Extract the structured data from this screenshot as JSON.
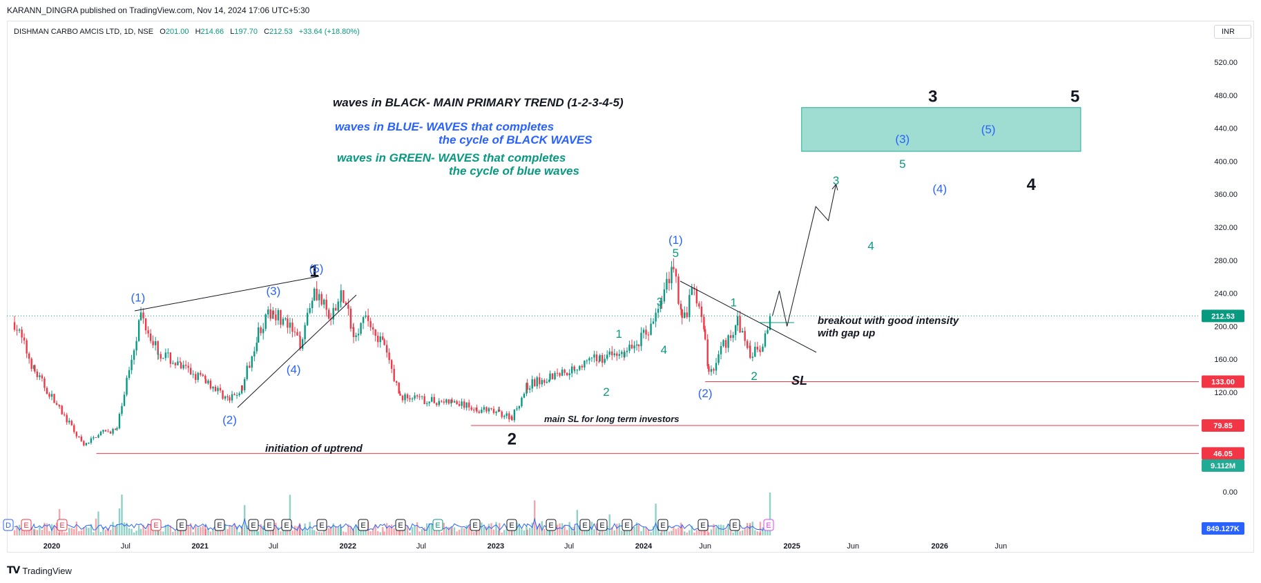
{
  "header": {
    "published": "KARANN_DINGRA published on TradingView.com, Nov 14, 2024 17:06 UTC+5:30",
    "symbol": "DISHMAN CARBO AMCIS LTD, 1D, NSE",
    "o_label": "O",
    "o_value": "201.00",
    "h_label": "H",
    "h_value": "214.66",
    "l_label": "L",
    "l_value": "197.70",
    "c_label": "C",
    "c_value": "212.53",
    "change": "+33.64 (+18.80%)",
    "currency": "INR"
  },
  "brand": {
    "logo": "TV",
    "name": "TradingView"
  },
  "colors": {
    "up": "#089981",
    "down": "#f23645",
    "blue_wave": "#2962ff",
    "green_wave": "#089981",
    "zone": "#7fd1c4",
    "sl_line": "#f23645"
  },
  "notes": {
    "black": "waves in BLACK- MAIN PRIMARY TREND (1-2-3-4-5)",
    "blue_1": "waves in BLUE- WAVES that completes",
    "blue_2": "the cycle of BLACK WAVES",
    "green_1": "waves in GREEN- WAVES that completes",
    "green_2": "the cycle of blue waves",
    "breakout_1": "breakout with good intensity",
    "breakout_2": "with gap up",
    "sl": "SL",
    "main_sl": "main SL for long term investors",
    "uptrend": "initiation of uptrend"
  },
  "chart_data": {
    "type": "candlestick",
    "title": "DISHMAN CARBO AMCIS LTD, 1D, NSE",
    "ylim": [
      0,
      540
    ],
    "y_ticks": [
      "520.00",
      "480.00",
      "440.00",
      "400.00",
      "360.00",
      "320.00",
      "280.00",
      "240.00",
      "200.00",
      "160.00",
      "120.00",
      "0.00"
    ],
    "x_ticks": [
      "2020",
      "Jul",
      "2021",
      "Jul",
      "2022",
      "Jul",
      "2023",
      "Jul",
      "2024",
      "Jun",
      "2025",
      "Jun",
      "2026",
      "Jun"
    ],
    "price_path": [
      [
        "2019-10-01",
        205
      ],
      [
        "2019-11-20",
        145
      ],
      [
        "2020-01-20",
        100
      ],
      [
        "2020-03-20",
        55
      ],
      [
        "2020-04-25",
        70
      ],
      [
        "2020-06-10",
        75
      ],
      [
        "2020-07-10",
        150
      ],
      [
        "2020-08-08",
        215
      ],
      [
        "2020-09-20",
        170
      ],
      [
        "2020-11-15",
        150
      ],
      [
        "2021-01-15",
        135
      ],
      [
        "2021-03-15",
        110
      ],
      [
        "2021-04-15",
        125
      ],
      [
        "2021-05-25",
        195
      ],
      [
        "2021-07-01",
        220
      ],
      [
        "2021-08-05",
        200
      ],
      [
        "2021-09-05",
        180
      ],
      [
        "2021-10-10",
        248
      ],
      [
        "2021-11-20",
        205
      ],
      [
        "2021-12-15",
        240
      ],
      [
        "2022-01-15",
        195
      ],
      [
        "2022-02-20",
        208
      ],
      [
        "2022-04-01",
        175
      ],
      [
        "2022-05-10",
        115
      ],
      [
        "2022-07-15",
        110
      ],
      [
        "2022-09-15",
        108
      ],
      [
        "2022-11-15",
        100
      ],
      [
        "2023-01-10",
        95
      ],
      [
        "2023-02-10",
        90
      ],
      [
        "2023-03-20",
        128
      ],
      [
        "2023-05-15",
        140
      ],
      [
        "2023-07-15",
        150
      ],
      [
        "2023-09-15",
        162
      ],
      [
        "2023-11-15",
        168
      ],
      [
        "2023-12-20",
        182
      ],
      [
        "2024-01-25",
        205
      ],
      [
        "2024-02-15",
        232
      ],
      [
        "2024-03-15",
        278
      ],
      [
        "2024-04-05",
        205
      ],
      [
        "2024-05-05",
        245
      ],
      [
        "2024-06-01",
        185
      ],
      [
        "2024-06-10",
        140
      ],
      [
        "2024-07-10",
        172
      ],
      [
        "2024-08-20",
        205
      ],
      [
        "2024-09-20",
        168
      ],
      [
        "2024-10-15",
        175
      ],
      [
        "2024-11-14",
        212.53
      ]
    ],
    "projection": [
      [
        "2024-11-14",
        212.53
      ],
      [
        "2024-12-01",
        243
      ],
      [
        "2024-12-20",
        200
      ],
      [
        "2025-03-01",
        345
      ],
      [
        "2025-04-01",
        328
      ],
      [
        "2025-04-20",
        372
      ]
    ],
    "wave_labels": [
      {
        "text": "1",
        "color": "black",
        "date": "2021-10-10",
        "price": 260
      },
      {
        "text": "2",
        "color": "black",
        "date": "2023-02-10",
        "price": 57
      },
      {
        "text": "3",
        "color": "black",
        "date": "2025-12-15",
        "price": 472
      },
      {
        "text": "4",
        "color": "black",
        "date": "2026-08-15",
        "price": 365
      },
      {
        "text": "5",
        "color": "black",
        "date": "2026-12-01",
        "price": 472
      },
      {
        "text": "(1)",
        "color": "blue",
        "date": "2020-08-01",
        "price": 230
      },
      {
        "text": "(2)",
        "color": "blue",
        "date": "2021-03-15",
        "price": 82
      },
      {
        "text": "(3)",
        "color": "blue",
        "date": "2021-07-01",
        "price": 238
      },
      {
        "text": "(4)",
        "color": "blue",
        "date": "2021-08-20",
        "price": 143
      },
      {
        "text": "(5)",
        "color": "blue",
        "date": "2021-10-15",
        "price": 265
      },
      {
        "text": "(1)",
        "color": "blue",
        "date": "2024-03-20",
        "price": 300
      },
      {
        "text": "(2)",
        "color": "blue",
        "date": "2024-06-01",
        "price": 114
      },
      {
        "text": "(3)",
        "color": "blue",
        "date": "2025-10-01",
        "price": 422
      },
      {
        "text": "(4)",
        "color": "blue",
        "date": "2026-01-01",
        "price": 362
      },
      {
        "text": "(5)",
        "color": "blue",
        "date": "2026-05-01",
        "price": 434
      },
      {
        "text": "1",
        "color": "green",
        "date": "2023-11-01",
        "price": 186
      },
      {
        "text": "2",
        "color": "green",
        "date": "2023-10-01",
        "price": 116
      },
      {
        "text": "3",
        "color": "green",
        "date": "2024-02-10",
        "price": 225
      },
      {
        "text": "4",
        "color": "green",
        "date": "2024-02-20",
        "price": 167
      },
      {
        "text": "5",
        "color": "green",
        "date": "2024-03-20",
        "price": 284
      },
      {
        "text": "1",
        "color": "green",
        "date": "2024-08-10",
        "price": 224
      },
      {
        "text": "2",
        "color": "green",
        "date": "2024-09-30",
        "price": 135
      },
      {
        "text": "3",
        "color": "green",
        "date": "2025-04-20",
        "price": 372
      },
      {
        "text": "4",
        "color": "green",
        "date": "2025-07-15",
        "price": 293
      },
      {
        "text": "5",
        "color": "green",
        "date": "2025-10-01",
        "price": 392
      }
    ],
    "levels": [
      {
        "label": "133.00",
        "value": 133,
        "from": "2024-06-01"
      },
      {
        "label": "79.85",
        "value": 79.85,
        "from": "2022-11-01"
      },
      {
        "label": "46.05",
        "value": 46.05,
        "from": "2020-04-20"
      }
    ],
    "current_price": {
      "label": "212.53",
      "value": 212.53
    },
    "volume_label": "9.112M",
    "volume_avg_label": "849.127K",
    "target_zone": {
      "price_low": 412,
      "price_high": 465,
      "from": "2025-01-25",
      "to": "2026-12-15"
    },
    "earnings_markers": [
      "D",
      "E",
      "E",
      "E",
      "E",
      "E",
      "E",
      "E",
      "E",
      "E",
      "E",
      "E",
      "E",
      "E",
      "E",
      "E",
      "E",
      "E",
      "E",
      "E",
      "E",
      "E",
      "E",
      "E",
      "E"
    ]
  }
}
